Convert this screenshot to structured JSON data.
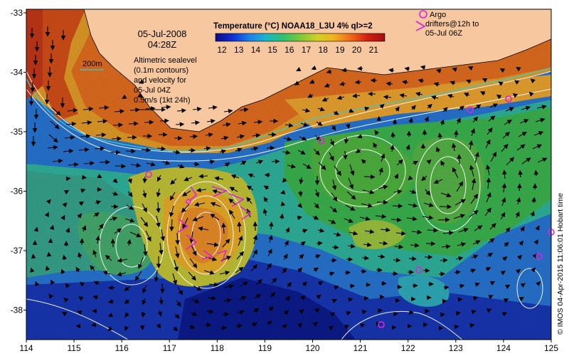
{
  "header": {
    "date": "05-Jul-2008",
    "time": "04:28Z",
    "colorbar_title": "Temperature (°C) NOAA18_L3U 4% ql>=2"
  },
  "legend": {
    "isobath_label": "200m",
    "altimetry": [
      "Altimetric sealevel",
      "(0.1m contours)",
      "and velocity for",
      "05-Jul 04Z"
    ],
    "scale_label": "0.5m/s (1kt 24h)",
    "argo": [
      "Argo",
      "drifters@12h to",
      "05-Jul 06Z"
    ]
  },
  "colorbar": {
    "ticks": [
      "12",
      "13",
      "14",
      "15",
      "16",
      "17",
      "18",
      "19",
      "20",
      "21"
    ],
    "colors": [
      "#0a0a8c",
      "#1030d0",
      "#1c80e8",
      "#18b8c8",
      "#30c070",
      "#7cc838",
      "#d0d028",
      "#f0b020",
      "#f06818",
      "#d02010",
      "#a01010"
    ]
  },
  "axes": {
    "x_ticks": [
      "114",
      "115",
      "116",
      "117",
      "118",
      "119",
      "120",
      "121",
      "122",
      "123",
      "124",
      "125"
    ],
    "y_ticks": [
      "-33",
      "-34",
      "-35",
      "-36",
      "-37",
      "-38"
    ]
  },
  "credit": "© IMOS 04-Apr-2015 11:06:01 Hobart time",
  "colors": {
    "land": "#f7c8a0",
    "argo": "#e020e0",
    "isobath": "#40c8d0",
    "contour": "#ffffff"
  }
}
